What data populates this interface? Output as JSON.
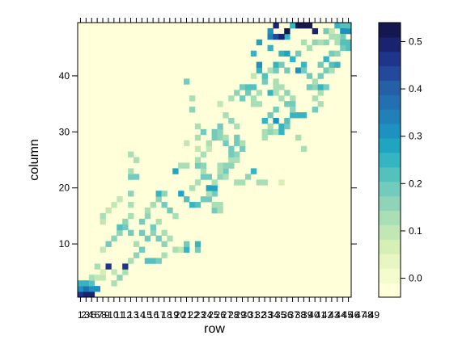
{
  "chart_data": {
    "type": "heatmap",
    "title": "",
    "xlabel": "row",
    "ylabel": "column",
    "x_tick_labels": [
      "1",
      "2",
      "3",
      "4",
      "5",
      "6",
      "7",
      "8",
      "9",
      "10",
      "11",
      "12",
      "13",
      "14",
      "15",
      "16",
      "17",
      "18",
      "19",
      "20",
      "21",
      "22",
      "23",
      "24",
      "25",
      "26",
      "27",
      "28",
      "29",
      "30",
      "31",
      "32",
      "33",
      "34",
      "35",
      "36",
      "37",
      "38",
      "39",
      "40",
      "41",
      "42",
      "43",
      "44",
      "45",
      "46",
      "47",
      "48",
      "49"
    ],
    "y_ticks": [
      10,
      20,
      30,
      40
    ],
    "x_range": [
      1,
      49
    ],
    "y_range": [
      1,
      49
    ],
    "grid": false,
    "legend_placement": "right",
    "colorbar": {
      "range": [
        -0.04,
        0.54
      ],
      "ticks": [
        "0.0",
        "0.1",
        "0.2",
        "0.3",
        "0.4",
        "0.5"
      ],
      "tick_values": [
        0.0,
        0.1,
        0.2,
        0.3,
        0.4,
        0.5
      ],
      "colors": [
        "#ffffd9",
        "#f4fbcd",
        "#e8f6c1",
        "#d5efb4",
        "#c2e7b5",
        "#aadfb6",
        "#8fd4b8",
        "#72cbbc",
        "#55c1bf",
        "#35b5c1",
        "#20a5c1",
        "#1d91c0",
        "#2280b9",
        "#2270b2",
        "#2360a6",
        "#23499c",
        "#1f358c",
        "#19236e",
        "#14184f"
      ]
    },
    "cells": [
      [
        1,
        1,
        0.45
      ],
      [
        1,
        2,
        0.31
      ],
      [
        1,
        3,
        0.26
      ],
      [
        2,
        1,
        0.5
      ],
      [
        2,
        2,
        0.37
      ],
      [
        2,
        3,
        0.24
      ],
      [
        3,
        1,
        0.48
      ],
      [
        3,
        2,
        0.3
      ],
      [
        3,
        3,
        0.22
      ],
      [
        3,
        4,
        0.12
      ],
      [
        4,
        2,
        0.3
      ],
      [
        4,
        4,
        0.1
      ],
      [
        5,
        4,
        0.1
      ],
      [
        5,
        5,
        0.08
      ],
      [
        6,
        6,
        0.45
      ],
      [
        4,
        6,
        0.12
      ],
      [
        7,
        3,
        0.12
      ],
      [
        7,
        5,
        0.1
      ],
      [
        8,
        4,
        0.16
      ],
      [
        9,
        5,
        0.13
      ],
      [
        9,
        6,
        0.45
      ],
      [
        5,
        9,
        0.1
      ],
      [
        6,
        10,
        0.2
      ],
      [
        7,
        11,
        0.16
      ],
      [
        8,
        12,
        0.2
      ],
      [
        9,
        13,
        0.18
      ],
      [
        5,
        14,
        0.1
      ],
      [
        5,
        15,
        0.12
      ],
      [
        6,
        16,
        0.1
      ],
      [
        7,
        17,
        0.1
      ],
      [
        8,
        18,
        0.1
      ],
      [
        8,
        12,
        0.17
      ],
      [
        8,
        13,
        0.21
      ],
      [
        9,
        14,
        0.16
      ],
      [
        10,
        7,
        0.14
      ],
      [
        10,
        12,
        0.18
      ],
      [
        11,
        8,
        0.16
      ],
      [
        11,
        10,
        0.14
      ],
      [
        12,
        9,
        0.2
      ],
      [
        12,
        12,
        0.18
      ],
      [
        13,
        7,
        0.22
      ],
      [
        14,
        7,
        0.21
      ],
      [
        15,
        7,
        0.2
      ],
      [
        13,
        11,
        0.2
      ],
      [
        14,
        12,
        0.16
      ],
      [
        14,
        13,
        0.18
      ],
      [
        15,
        14,
        0.14
      ],
      [
        15,
        11,
        0.18
      ],
      [
        16,
        8,
        0.14
      ],
      [
        16,
        10,
        0.16
      ],
      [
        16,
        12,
        0.14
      ],
      [
        17,
        11,
        0.12
      ],
      [
        18,
        9,
        0.12
      ],
      [
        19,
        9,
        0.1
      ],
      [
        10,
        15,
        0.12
      ],
      [
        10,
        17,
        0.14
      ],
      [
        10,
        19,
        0.16
      ],
      [
        10,
        22,
        0.18
      ],
      [
        10,
        23,
        0.14
      ],
      [
        10,
        26,
        0.14
      ],
      [
        11,
        22,
        0.18
      ],
      [
        11,
        25,
        0.12
      ],
      [
        12,
        14,
        0.18
      ],
      [
        13,
        15,
        0.16
      ],
      [
        13,
        16,
        0.14
      ],
      [
        14,
        17,
        0.12
      ],
      [
        15,
        18,
        0.16
      ],
      [
        15,
        19,
        0.24
      ],
      [
        16,
        17,
        0.2
      ],
      [
        16,
        19,
        0.16
      ],
      [
        17,
        16,
        0.18
      ],
      [
        18,
        15,
        0.14
      ],
      [
        18,
        23,
        0.28
      ],
      [
        19,
        19,
        0.28
      ],
      [
        20,
        18,
        0.22
      ],
      [
        21,
        17,
        0.26
      ],
      [
        21,
        20,
        0.12
      ],
      [
        22,
        21,
        0.14
      ],
      [
        22,
        24,
        0.2
      ],
      [
        23,
        22,
        0.18
      ],
      [
        19,
        24,
        0.14
      ],
      [
        20,
        24,
        0.12
      ],
      [
        20,
        9,
        0.26
      ],
      [
        20,
        10,
        0.2
      ],
      [
        22,
        9,
        0.2
      ],
      [
        22,
        10,
        0.24
      ],
      [
        22,
        17,
        0.22
      ],
      [
        23,
        18,
        0.2
      ],
      [
        24,
        18,
        0.2
      ],
      [
        25,
        19,
        0.18
      ],
      [
        25,
        16,
        0.18
      ],
      [
        25,
        17,
        0.14
      ],
      [
        26,
        16,
        0.14
      ],
      [
        26,
        17,
        0.14
      ],
      [
        24,
        19,
        0.14
      ],
      [
        24,
        20,
        0.28
      ],
      [
        25,
        20,
        0.28
      ],
      [
        24,
        22,
        0.18
      ],
      [
        25,
        21,
        0.12
      ],
      [
        26,
        22,
        0.16
      ],
      [
        27,
        23,
        0.18
      ],
      [
        23,
        23,
        0.12
      ],
      [
        23,
        24,
        0.16
      ],
      [
        20,
        28,
        0.1
      ],
      [
        20,
        39,
        0.18
      ],
      [
        21,
        34,
        0.16
      ],
      [
        21,
        36,
        0.12
      ],
      [
        22,
        25,
        0.14
      ],
      [
        22,
        27,
        0.1
      ],
      [
        22,
        29,
        0.12
      ],
      [
        22,
        31,
        0.14
      ],
      [
        23,
        30,
        0.18
      ],
      [
        23,
        26,
        0.12
      ],
      [
        24,
        27,
        0.1
      ],
      [
        24,
        28,
        0.14
      ],
      [
        25,
        29,
        0.18
      ],
      [
        25,
        30,
        0.2
      ],
      [
        26,
        29,
        0.16
      ],
      [
        26,
        30,
        0.16
      ],
      [
        26,
        31,
        0.2
      ],
      [
        27,
        28,
        0.18
      ],
      [
        27,
        29,
        0.14
      ],
      [
        28,
        27,
        0.18
      ],
      [
        28,
        25,
        0.14
      ],
      [
        28,
        24,
        0.16
      ],
      [
        27,
        22,
        0.12
      ],
      [
        26,
        23,
        0.14
      ],
      [
        26,
        24,
        0.12
      ],
      [
        27,
        24,
        0.16
      ],
      [
        28,
        26,
        0.2
      ],
      [
        29,
        26,
        0.16
      ],
      [
        29,
        28,
        0.2
      ],
      [
        29,
        29,
        0.18
      ],
      [
        30,
        27,
        0.18
      ],
      [
        30,
        28,
        0.14
      ],
      [
        29,
        25,
        0.14
      ],
      [
        26,
        35,
        0.1
      ],
      [
        27,
        33,
        0.12
      ],
      [
        28,
        32,
        0.16
      ],
      [
        28,
        36,
        0.12
      ],
      [
        29,
        31,
        0.14
      ],
      [
        29,
        37,
        0.16
      ],
      [
        30,
        38,
        0.18
      ],
      [
        30,
        36,
        0.2
      ],
      [
        31,
        37,
        0.2
      ],
      [
        31,
        38,
        0.22
      ],
      [
        32,
        38,
        0.22
      ],
      [
        29,
        21,
        0.12
      ],
      [
        30,
        21,
        0.14
      ],
      [
        31,
        22,
        0.16
      ],
      [
        32,
        23,
        0.26
      ],
      [
        33,
        21,
        0.12
      ],
      [
        34,
        21,
        0.12
      ],
      [
        37,
        21,
        0.08
      ],
      [
        32,
        35,
        0.12
      ],
      [
        32,
        36,
        0.14
      ],
      [
        33,
        35,
        0.12
      ],
      [
        33,
        37,
        0.12
      ],
      [
        34,
        29,
        0.14
      ],
      [
        34,
        30,
        0.14
      ],
      [
        35,
        30,
        0.16
      ],
      [
        35,
        31,
        0.14
      ],
      [
        35,
        33,
        0.18
      ],
      [
        36,
        30,
        0.12
      ],
      [
        32,
        40,
        0.1
      ],
      [
        32,
        44,
        0.26
      ],
      [
        33,
        41,
        0.26
      ],
      [
        33,
        42,
        0.3
      ],
      [
        33,
        46,
        0.28
      ],
      [
        34,
        39,
        0.2
      ],
      [
        34,
        40,
        0.22
      ],
      [
        35,
        37,
        0.24
      ],
      [
        35,
        41,
        0.14
      ],
      [
        35,
        45,
        0.26
      ],
      [
        34,
        32,
        0.26
      ],
      [
        36,
        32,
        0.3
      ],
      [
        36,
        34,
        0.2
      ],
      [
        37,
        30,
        0.24
      ],
      [
        37,
        31,
        0.26
      ],
      [
        38,
        31,
        0.2
      ],
      [
        38,
        32,
        0.22
      ],
      [
        39,
        33,
        0.24
      ],
      [
        40,
        33,
        0.26
      ],
      [
        41,
        33,
        0.26
      ],
      [
        36,
        37,
        0.12
      ],
      [
        36,
        38,
        0.12
      ],
      [
        36,
        39,
        0.14
      ],
      [
        37,
        36,
        0.14
      ],
      [
        37,
        38,
        0.14
      ],
      [
        38,
        35,
        0.18
      ],
      [
        38,
        37,
        0.16
      ],
      [
        39,
        36,
        0.14
      ],
      [
        39,
        35,
        0.18
      ],
      [
        39,
        34,
        0.16
      ],
      [
        36,
        41,
        0.18
      ],
      [
        36,
        42,
        0.24
      ],
      [
        37,
        42,
        0.2
      ],
      [
        37,
        44,
        0.24
      ],
      [
        38,
        41,
        0.18
      ],
      [
        38,
        44,
        0.28
      ],
      [
        38,
        47,
        0.26
      ],
      [
        38,
        48,
        0.52
      ],
      [
        39,
        43,
        0.26
      ],
      [
        40,
        44,
        0.2
      ],
      [
        35,
        47,
        0.34
      ],
      [
        35,
        48,
        0.32
      ],
      [
        36,
        47,
        0.42
      ],
      [
        36,
        49,
        0.5
      ],
      [
        37,
        47,
        0.48
      ],
      [
        39,
        49,
        0.26
      ],
      [
        40,
        49,
        0.54
      ],
      [
        41,
        49,
        0.54
      ],
      [
        42,
        49,
        0.52
      ],
      [
        43,
        48,
        0.48
      ],
      [
        40,
        41,
        0.3
      ],
      [
        41,
        42,
        0.26
      ],
      [
        41,
        41,
        0.2
      ],
      [
        42,
        40,
        0.2
      ],
      [
        42,
        38,
        0.18
      ],
      [
        43,
        38,
        0.16
      ],
      [
        43,
        36,
        0.14
      ],
      [
        44,
        37,
        0.14
      ],
      [
        44,
        38,
        0.24
      ],
      [
        45,
        38,
        0.2
      ],
      [
        43,
        39,
        0.12
      ],
      [
        44,
        40,
        0.2
      ],
      [
        44,
        42,
        0.2
      ],
      [
        45,
        41,
        0.18
      ],
      [
        45,
        43,
        0.26
      ],
      [
        46,
        41,
        0.14
      ],
      [
        46,
        42,
        0.22
      ],
      [
        47,
        42,
        0.24
      ],
      [
        47,
        46,
        0.14
      ],
      [
        48,
        45,
        0.2
      ],
      [
        45,
        46,
        0.16
      ],
      [
        46,
        44,
        0.18
      ],
      [
        47,
        44,
        0.16
      ],
      [
        45,
        48,
        0.18
      ],
      [
        46,
        48,
        0.1
      ],
      [
        47,
        49,
        0.26
      ],
      [
        48,
        49,
        0.22
      ],
      [
        48,
        48,
        0.32
      ],
      [
        49,
        48,
        0.3
      ],
      [
        49,
        49,
        0.22
      ],
      [
        48,
        47,
        0.2
      ],
      [
        48,
        46,
        0.22
      ],
      [
        49,
        46,
        0.22
      ],
      [
        49,
        45,
        0.22
      ],
      [
        41,
        46,
        0.14
      ],
      [
        42,
        45,
        0.14
      ],
      [
        43,
        46,
        0.16
      ],
      [
        44,
        46,
        0.14
      ],
      [
        46,
        47,
        0.12
      ],
      [
        47,
        47,
        0.14
      ],
      [
        40,
        29,
        0.12
      ],
      [
        41,
        27,
        0.12
      ],
      [
        43,
        34,
        0.18
      ],
      [
        44,
        35,
        0.12
      ]
    ]
  }
}
